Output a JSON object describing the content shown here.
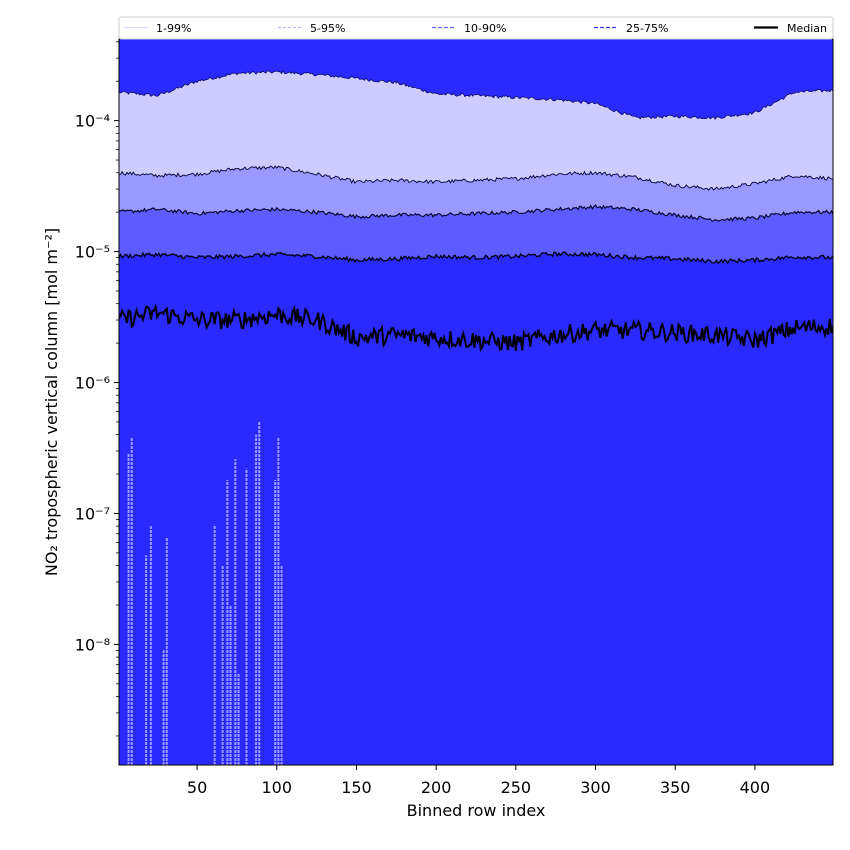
{
  "chart_data": {
    "type": "area",
    "xlabel": "Binned row index",
    "ylabel": "NO₂ tropospheric vertical column [mol m⁻²]",
    "xlim": [
      1,
      449
    ],
    "ylim": [
      1.2e-09,
      0.00042
    ],
    "yscale": "log",
    "grid": false,
    "legend_position": "top",
    "x_ticks": [
      50,
      100,
      150,
      200,
      250,
      300,
      350,
      400
    ],
    "y_ticks": [
      {
        "value": 1e-08,
        "label": "10⁻⁸"
      },
      {
        "value": 1e-07,
        "label": "10⁻⁷"
      },
      {
        "value": 1e-06,
        "label": "10⁻⁶"
      },
      {
        "value": 1e-05,
        "label": "10⁻⁵"
      },
      {
        "value": 0.0001,
        "label": "10⁻⁴"
      }
    ],
    "legend": [
      {
        "label": "1-99%",
        "style": "thin",
        "color": "#ccccff"
      },
      {
        "label": "5-95%",
        "style": "thin-dash",
        "color": "#9999ff"
      },
      {
        "label": "10-90%",
        "style": "dash",
        "color": "#6666ff"
      },
      {
        "label": "25-75%",
        "style": "dash",
        "color": "#3333ee"
      },
      {
        "label": "Median",
        "style": "solid",
        "color": "#000000"
      }
    ],
    "colors": {
      "band_1_99": "#ccccff",
      "band_5_95": "#9999ff",
      "band_10_90": "#5c5cff",
      "band_25_75": "#2a2aff",
      "inner": "#2a2aff",
      "median": "#000000"
    },
    "percentile_curves": {
      "x": [
        1,
        25,
        50,
        75,
        100,
        125,
        150,
        175,
        200,
        225,
        250,
        275,
        300,
        325,
        350,
        375,
        400,
        425,
        449
      ],
      "p99": [
        0.000165,
        0.000155,
        0.0002,
        0.00023,
        0.000235,
        0.000225,
        0.00021,
        0.000195,
        0.00016,
        0.000155,
        0.00015,
        0.000145,
        0.000135,
        0.000105,
        0.000108,
        0.000105,
        0.000115,
        0.000165,
        0.00017
      ],
      "p95": [
        4e-05,
        3.8e-05,
        3.9e-05,
        4.3e-05,
        4.4e-05,
        3.9e-05,
        3.4e-05,
        3.5e-05,
        3.4e-05,
        3.5e-05,
        3.6e-05,
        3.9e-05,
        4e-05,
        3.7e-05,
        3.2e-05,
        3e-05,
        3.3e-05,
        3.8e-05,
        3.6e-05
      ],
      "p90": [
        2e-05,
        2.1e-05,
        1.95e-05,
        2.05e-05,
        2.1e-05,
        2e-05,
        1.85e-05,
        1.9e-05,
        1.9e-05,
        1.95e-05,
        2e-05,
        2.1e-05,
        2.2e-05,
        2.1e-05,
        1.9e-05,
        1.75e-05,
        1.8e-05,
        2e-05,
        2e-05
      ],
      "p75": [
        9.2e-06,
        9.5e-06,
        9e-06,
        9.2e-06,
        9.5e-06,
        9.2e-06,
        8.6e-06,
        8.8e-06,
        9.2e-06,
        9e-06,
        9.2e-06,
        9.6e-06,
        9.5e-06,
        9e-06,
        8.8e-06,
        8.4e-06,
        8.6e-06,
        9.1e-06,
        9e-06
      ],
      "median": [
        3e-06,
        3.4e-06,
        3e-06,
        3e-06,
        3.3e-06,
        3e-06,
        2.2e-06,
        2.3e-06,
        2.2e-06,
        2.1e-06,
        2e-06,
        2.3e-06,
        2.5e-06,
        2.5e-06,
        2.4e-06,
        2.3e-06,
        2.1e-06,
        2.6e-06,
        2.7e-06
      ]
    },
    "lower_spikes": [
      {
        "x": 7,
        "y": 2.9e-07
      },
      {
        "x": 9,
        "y": 3.8e-07
      },
      {
        "x": 18,
        "y": 4.8e-08
      },
      {
        "x": 21,
        "y": 8e-08
      },
      {
        "x": 29,
        "y": 9e-09
      },
      {
        "x": 31,
        "y": 6.5e-08
      },
      {
        "x": 61,
        "y": 8.2e-08
      },
      {
        "x": 66,
        "y": 4e-08
      },
      {
        "x": 69,
        "y": 1.8e-07
      },
      {
        "x": 71,
        "y": 2e-08
      },
      {
        "x": 74,
        "y": 2.6e-07
      },
      {
        "x": 76,
        "y": 6e-09
      },
      {
        "x": 81,
        "y": 2.2e-07
      },
      {
        "x": 87,
        "y": 4e-07
      },
      {
        "x": 89,
        "y": 5e-07
      },
      {
        "x": 99,
        "y": 1.8e-07
      },
      {
        "x": 101,
        "y": 3.8e-07
      },
      {
        "x": 103,
        "y": 4e-08
      }
    ]
  }
}
